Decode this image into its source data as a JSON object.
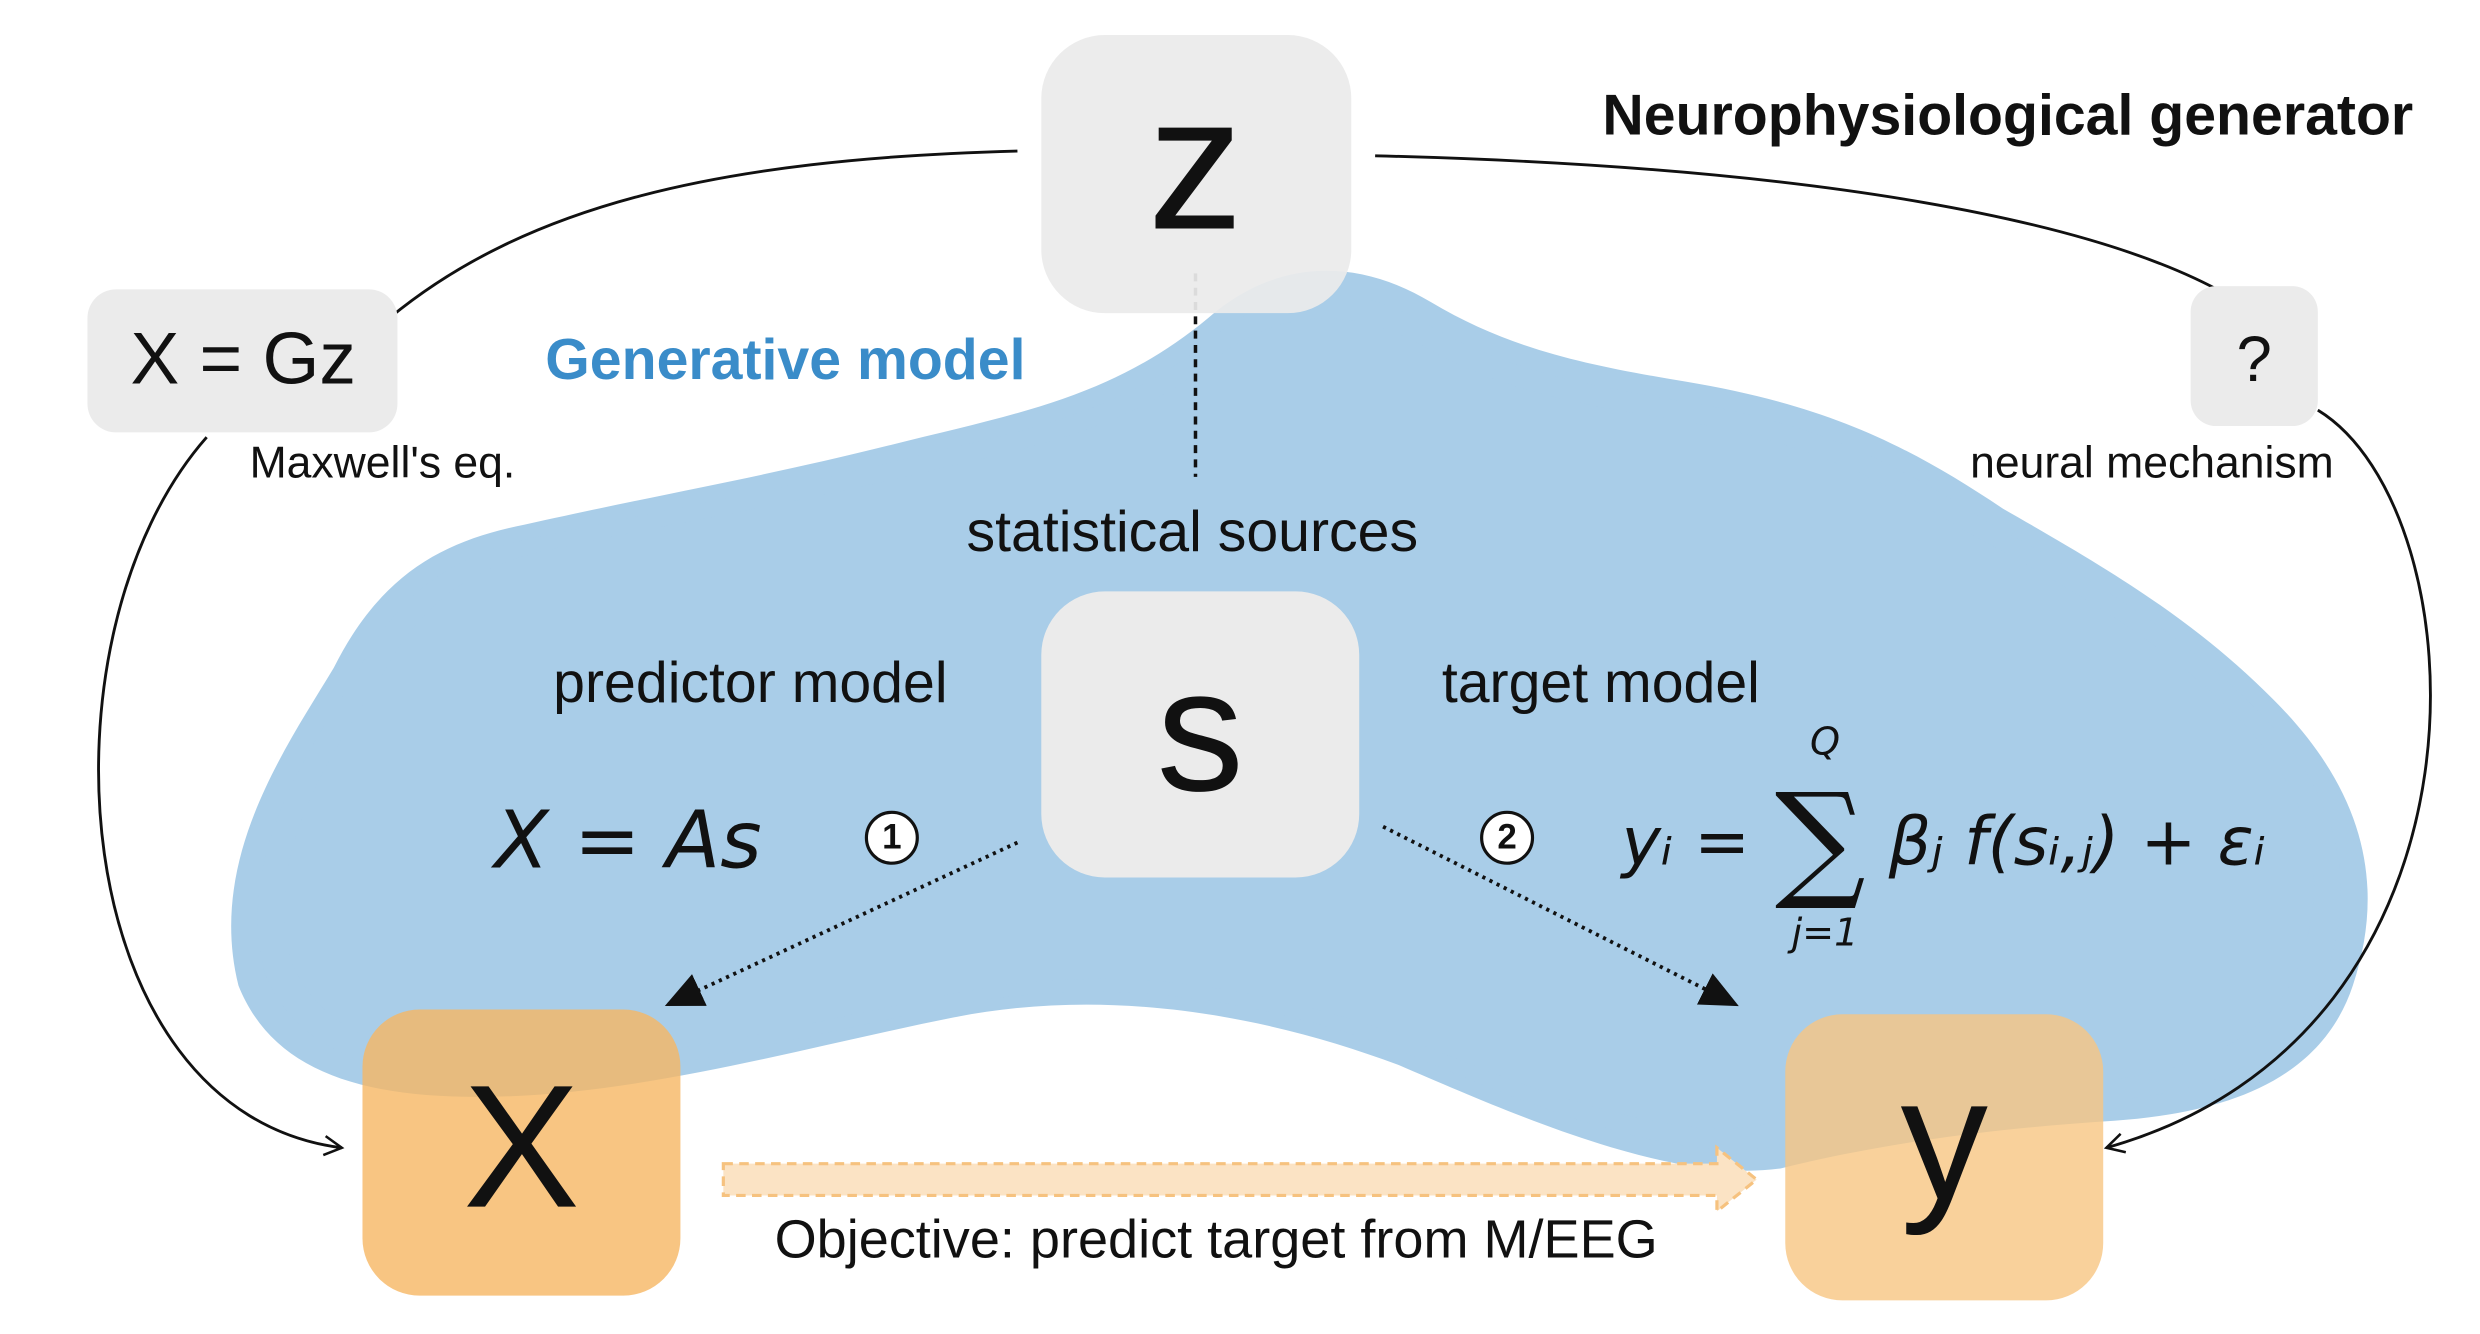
{
  "title": "Neurophysiological generator",
  "nodes": {
    "z": "z",
    "s": "s",
    "X": "X",
    "y": "y",
    "forward": "X = Gz",
    "unknown": "?"
  },
  "labels": {
    "maxwell": "Maxwell's eq.",
    "neural": "neural mechanism",
    "generative": "Generative model",
    "sources": "statistical sources",
    "predictor": "predictor model",
    "target": "target model",
    "objective": "Objective: predict target from M/EEG"
  },
  "steps": [
    "1",
    "2"
  ],
  "equations": {
    "predictor": "X = As",
    "target": {
      "lhs": "yᵢ =",
      "sum": "∑",
      "upper": "Q",
      "lower": "j=1",
      "rhs": "βⱼ f(sᵢ,ⱼ) + εᵢ"
    }
  }
}
